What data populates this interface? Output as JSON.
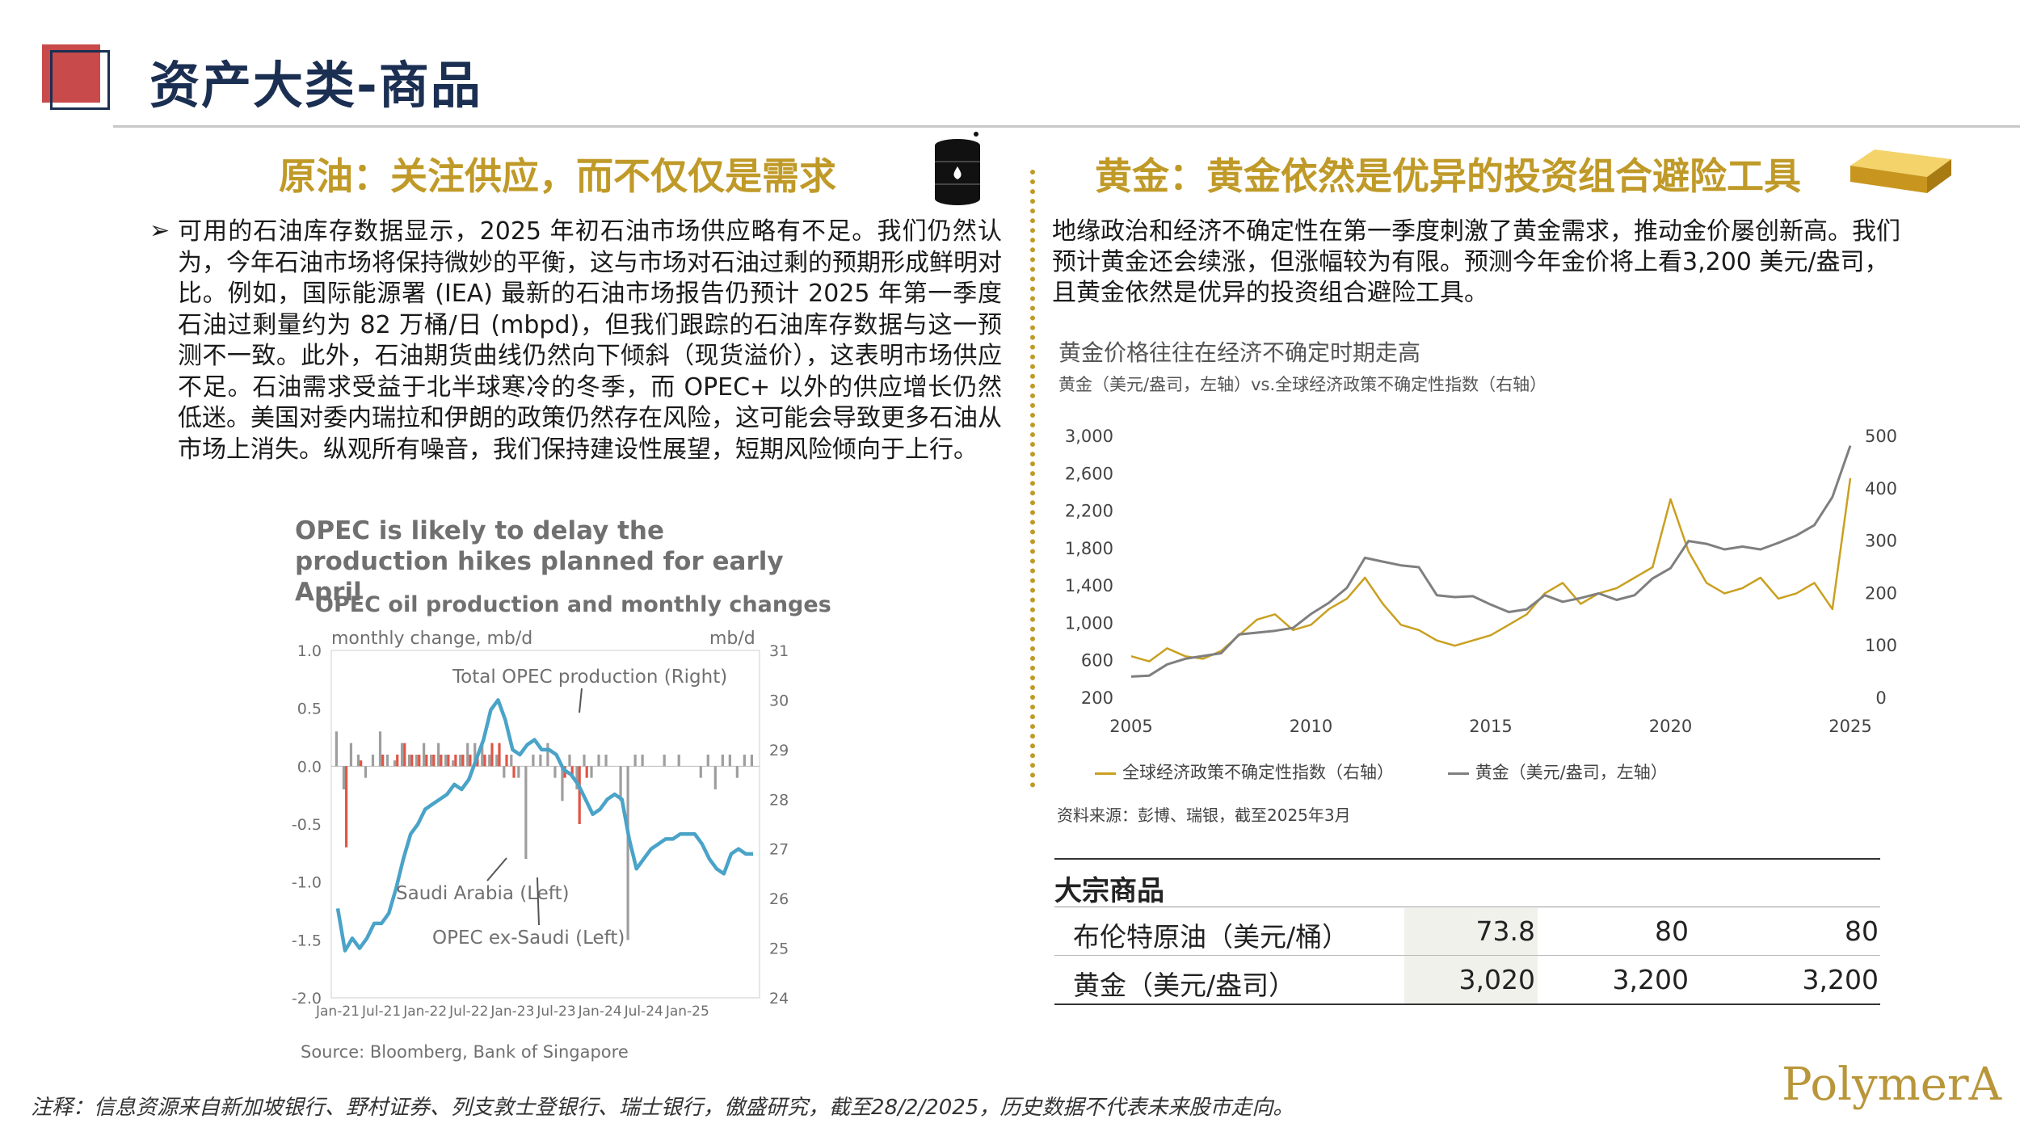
{
  "page": {
    "title": "资产大类-商品",
    "footnote": "注释：信息资源来自新加坡银行、野村证券、列支敦士登银行、瑞士银行，傲盛研究，截至28/2/2025，历史数据不代表未来股市走向。",
    "logo_text": "PolymerA"
  },
  "oil": {
    "heading": "原油：关注供应，而不仅仅是需求",
    "bullet": "➢",
    "body": "可用的石油库存数据显示，2025 年初石油市场供应略有不足。我们仍然认为，今年石油市场将保持微妙的平衡，这与市场对石油过剩的预期形成鲜明对比。例如，国际能源署 (IEA) 最新的石油市场报告仍预计 2025 年第一季度石油过剩量约为 82 万桶/日 (mbpd)，但我们跟踪的石油库存数据与这一预测不一致。此外，石油期货曲线仍然向下倾斜（现货溢价），这表明市场供应不足。石油需求受益于北半球寒冷的冬季，而 OPEC+ 以外的供应增长仍然低迷。美国对委内瑞拉和伊朗的政策仍然存在风险，这可能会导致更多石油从市场上消失。纵观所有噪音，我们保持建设性展望，短期风险倾向于上行。"
  },
  "gold": {
    "heading": "黄金：黄金依然是优异的投资组合避险工具",
    "body": "地缘政治和经济不确定性在第一季度刺激了黄金需求，推动金价屡创新高。我们预计黄金还会续涨，但涨幅较为有限。预测今年金价将上看3,200 美元/盎司，且黄金依然是优异的投资组合避险工具。"
  },
  "chart_data": [
    {
      "type": "bar",
      "title": "OPEC is likely to delay the production hikes planned for early April",
      "subtitle": "OPEC oil production and monthly changes",
      "ylabel_left": "monthly change, mb/d",
      "ylabel_right": "mb/d",
      "ylim_left": [
        -2.0,
        1.0
      ],
      "ylim_right": [
        24,
        31
      ],
      "yticks_left": [
        "1.0",
        "0.5",
        "0.0",
        "-0.5",
        "-1.0",
        "-1.5",
        "-2.0"
      ],
      "yticks_right": [
        "31",
        "30",
        "29",
        "28",
        "27",
        "26",
        "25",
        "24"
      ],
      "xticks": [
        "Jan-21",
        "Jul-21",
        "Jan-22",
        "Jul-22",
        "Jan-23",
        "Jul-23",
        "Jan-24",
        "Jul-24",
        "Jan-25"
      ],
      "annotations": [
        "Total OPEC production (Right)",
        "Saudi Arabia (Left)",
        "OPEC ex-Saudi (Left)"
      ],
      "source": "Source: Bloomberg, Bank of Singapore",
      "series": [
        {
          "name": "Total OPEC production (Right)",
          "type": "line",
          "color": "#4aa3c8",
          "values": [
            25.8,
            24.95,
            25.2,
            25.0,
            25.2,
            25.5,
            25.5,
            25.7,
            26.2,
            26.8,
            27.3,
            27.5,
            27.8,
            27.9,
            28.0,
            28.1,
            28.3,
            28.2,
            28.4,
            28.8,
            29.2,
            29.8,
            30.0,
            29.6,
            29.0,
            28.9,
            29.1,
            29.2,
            29.0,
            29.0,
            28.9,
            28.6,
            28.5,
            28.3,
            28.0,
            27.7,
            27.8,
            28.0,
            28.1,
            28.0,
            27.2,
            26.6,
            26.8,
            27.0,
            27.1,
            27.2,
            27.2,
            27.3,
            27.3,
            27.3,
            27.1,
            26.8,
            26.6,
            26.5,
            26.9,
            27.0,
            26.9,
            26.9
          ]
        },
        {
          "name": "Saudi Arabia (Left)",
          "type": "bar",
          "color": "#e05545",
          "values": [
            0.0,
            -0.7,
            0.0,
            0.05,
            0.0,
            0.0,
            0.1,
            0.0,
            0.1,
            0.2,
            0.1,
            0.1,
            0.1,
            0.1,
            0.1,
            0.1,
            0.1,
            0.1,
            0.1,
            0.1,
            0.1,
            0.2,
            0.2,
            0.1,
            -0.1,
            0.0,
            0.0,
            0.0,
            0.0,
            0.0,
            0.0,
            -0.1,
            -0.1,
            -0.5,
            -0.1,
            0.0,
            0.0,
            0.0,
            0.0,
            0.0,
            0.0,
            0.0,
            0.0,
            0.0,
            0.0,
            0.0,
            0.0,
            0.0,
            0.0,
            0.0,
            0.0,
            0.0,
            0.0,
            0.0,
            0.0,
            0.0,
            0.0,
            0.0
          ]
        },
        {
          "name": "OPEC ex-Saudi (Left)",
          "type": "bar",
          "color": "#9e9e9e",
          "values": [
            0.3,
            -0.2,
            0.2,
            0.1,
            -0.1,
            0.1,
            0.3,
            0.1,
            0.05,
            0.2,
            0.1,
            0.1,
            0.2,
            0.1,
            0.2,
            0.1,
            0.05,
            0.1,
            0.2,
            0.2,
            0.2,
            0.1,
            0.1,
            -0.1,
            0.1,
            -0.1,
            -0.8,
            0.1,
            0.1,
            0.2,
            -0.1,
            -0.3,
            0.1,
            -0.2,
            0.1,
            -0.1,
            0.1,
            0.1,
            0.0,
            -0.3,
            -1.5,
            0.1,
            0.1,
            0.0,
            0.0,
            0.1,
            0.0,
            0.1,
            0.0,
            0.0,
            -0.1,
            0.1,
            -0.2,
            0.1,
            0.1,
            -0.1,
            0.1,
            0.1
          ]
        }
      ]
    },
    {
      "type": "line",
      "title": "黄金价格往往在经济不确定时期走高",
      "subtitle": "黄金（美元/盎司，左轴）vs.全球经济政策不确定性指数（右轴）",
      "ylim_left": [
        200,
        3000
      ],
      "ylim_right": [
        0,
        500
      ],
      "yticks_left": [
        "3,000",
        "2,600",
        "2,200",
        "1,800",
        "1,400",
        "1,000",
        "600",
        "200"
      ],
      "yticks_right": [
        "500",
        "400",
        "300",
        "200",
        "100",
        "0"
      ],
      "xticks": [
        "2005",
        "2010",
        "2015",
        "2020",
        "2025"
      ],
      "source": "资料来源：彭博、瑞银，截至2025年3月",
      "x": [
        2005.0,
        2005.5,
        2006.0,
        2006.5,
        2007.0,
        2007.5,
        2008.0,
        2008.5,
        2009.0,
        2009.5,
        2010.0,
        2010.5,
        2011.0,
        2011.5,
        2012.0,
        2012.5,
        2013.0,
        2013.5,
        2014.0,
        2014.5,
        2015.0,
        2015.5,
        2016.0,
        2016.5,
        2017.0,
        2017.5,
        2018.0,
        2018.5,
        2019.0,
        2019.5,
        2020.0,
        2020.5,
        2021.0,
        2021.5,
        2022.0,
        2022.5,
        2023.0,
        2023.5,
        2024.0,
        2024.5,
        2025.0
      ],
      "series": [
        {
          "name": "黄金（美元/盎司，左轴）",
          "color": "#7f7f7f",
          "values": [
            430,
            440,
            560,
            620,
            650,
            680,
            880,
            900,
            920,
            950,
            1100,
            1220,
            1380,
            1700,
            1660,
            1620,
            1600,
            1300,
            1280,
            1290,
            1200,
            1120,
            1150,
            1300,
            1230,
            1270,
            1320,
            1250,
            1300,
            1480,
            1590,
            1880,
            1850,
            1790,
            1820,
            1790,
            1860,
            1940,
            2050,
            2350,
            2900
          ]
        },
        {
          "name": "全球经济政策不确定性指数（右轴）",
          "color": "#c9a020",
          "values": [
            80,
            70,
            95,
            80,
            75,
            90,
            120,
            150,
            160,
            130,
            140,
            170,
            190,
            230,
            180,
            140,
            130,
            110,
            100,
            110,
            120,
            140,
            160,
            200,
            220,
            180,
            200,
            210,
            230,
            250,
            380,
            280,
            220,
            200,
            210,
            230,
            190,
            200,
            220,
            170,
            420
          ]
        }
      ]
    },
    {
      "type": "table",
      "title": "大宗商品",
      "rows": [
        {
          "label": "布伦特原油（美元/桶）",
          "values": [
            "73.8",
            "80",
            "80"
          ]
        },
        {
          "label": "黄金（美元/盎司）",
          "values": [
            "3,020",
            "3,200",
            "3,200"
          ]
        }
      ]
    }
  ]
}
